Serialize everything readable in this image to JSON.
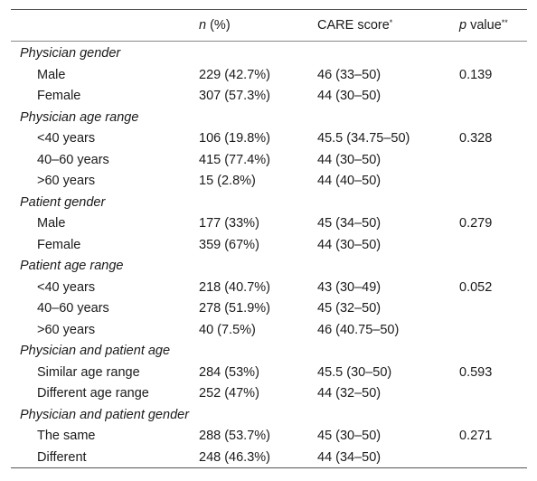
{
  "header": {
    "col_n_italic": "n",
    "col_n_rest": " (%)",
    "col_care": "CARE score",
    "col_care_mark": "*",
    "col_p_italic": "p",
    "col_p_rest": " value",
    "col_p_mark": "**"
  },
  "groups": [
    {
      "title": "Physician gender",
      "rows": [
        {
          "label": "Male",
          "n": "229 (42.7%)",
          "care": "46 (33–50)",
          "p": "0.139"
        },
        {
          "label": "Female",
          "n": "307 (57.3%)",
          "care": "44 (30–50)",
          "p": ""
        }
      ]
    },
    {
      "title": "Physician age range",
      "rows": [
        {
          "label": "<40 years",
          "n": "106 (19.8%)",
          "care": "45.5 (34.75–50)",
          "p": "0.328"
        },
        {
          "label": "40–60 years",
          "n": "415 (77.4%)",
          "care": "44 (30–50)",
          "p": ""
        },
        {
          "label": ">60 years",
          "n": "15 (2.8%)",
          "care": "44 (40–50)",
          "p": ""
        }
      ]
    },
    {
      "title": "Patient gender",
      "rows": [
        {
          "label": "Male",
          "n": "177 (33%)",
          "care": "45 (34–50)",
          "p": "0.279"
        },
        {
          "label": "Female",
          "n": "359 (67%)",
          "care": "44 (30–50)",
          "p": ""
        }
      ]
    },
    {
      "title": "Patient age range",
      "rows": [
        {
          "label": "<40 years",
          "n": "218 (40.7%)",
          "care": "43 (30–49)",
          "p": "0.052"
        },
        {
          "label": "40–60 years",
          "n": "278 (51.9%)",
          "care": "45 (32–50)",
          "p": ""
        },
        {
          "label": ">60 years",
          "n": "40 (7.5%)",
          "care": "46 (40.75–50)",
          "p": ""
        }
      ]
    },
    {
      "title": "Physician and patient age",
      "rows": [
        {
          "label": "Similar age range",
          "n": "284 (53%)",
          "care": "45.5 (30–50)",
          "p": "0.593"
        },
        {
          "label": "Different age range",
          "n": "252 (47%)",
          "care": "44 (32–50)",
          "p": ""
        }
      ]
    },
    {
      "title": "Physician and patient gender",
      "rows": [
        {
          "label": "The same",
          "n": "288 (53.7%)",
          "care": "45 (30–50)",
          "p": "0.271"
        },
        {
          "label": "Different",
          "n": "248 (46.3%)",
          "care": "44 (34–50)",
          "p": ""
        }
      ]
    }
  ]
}
